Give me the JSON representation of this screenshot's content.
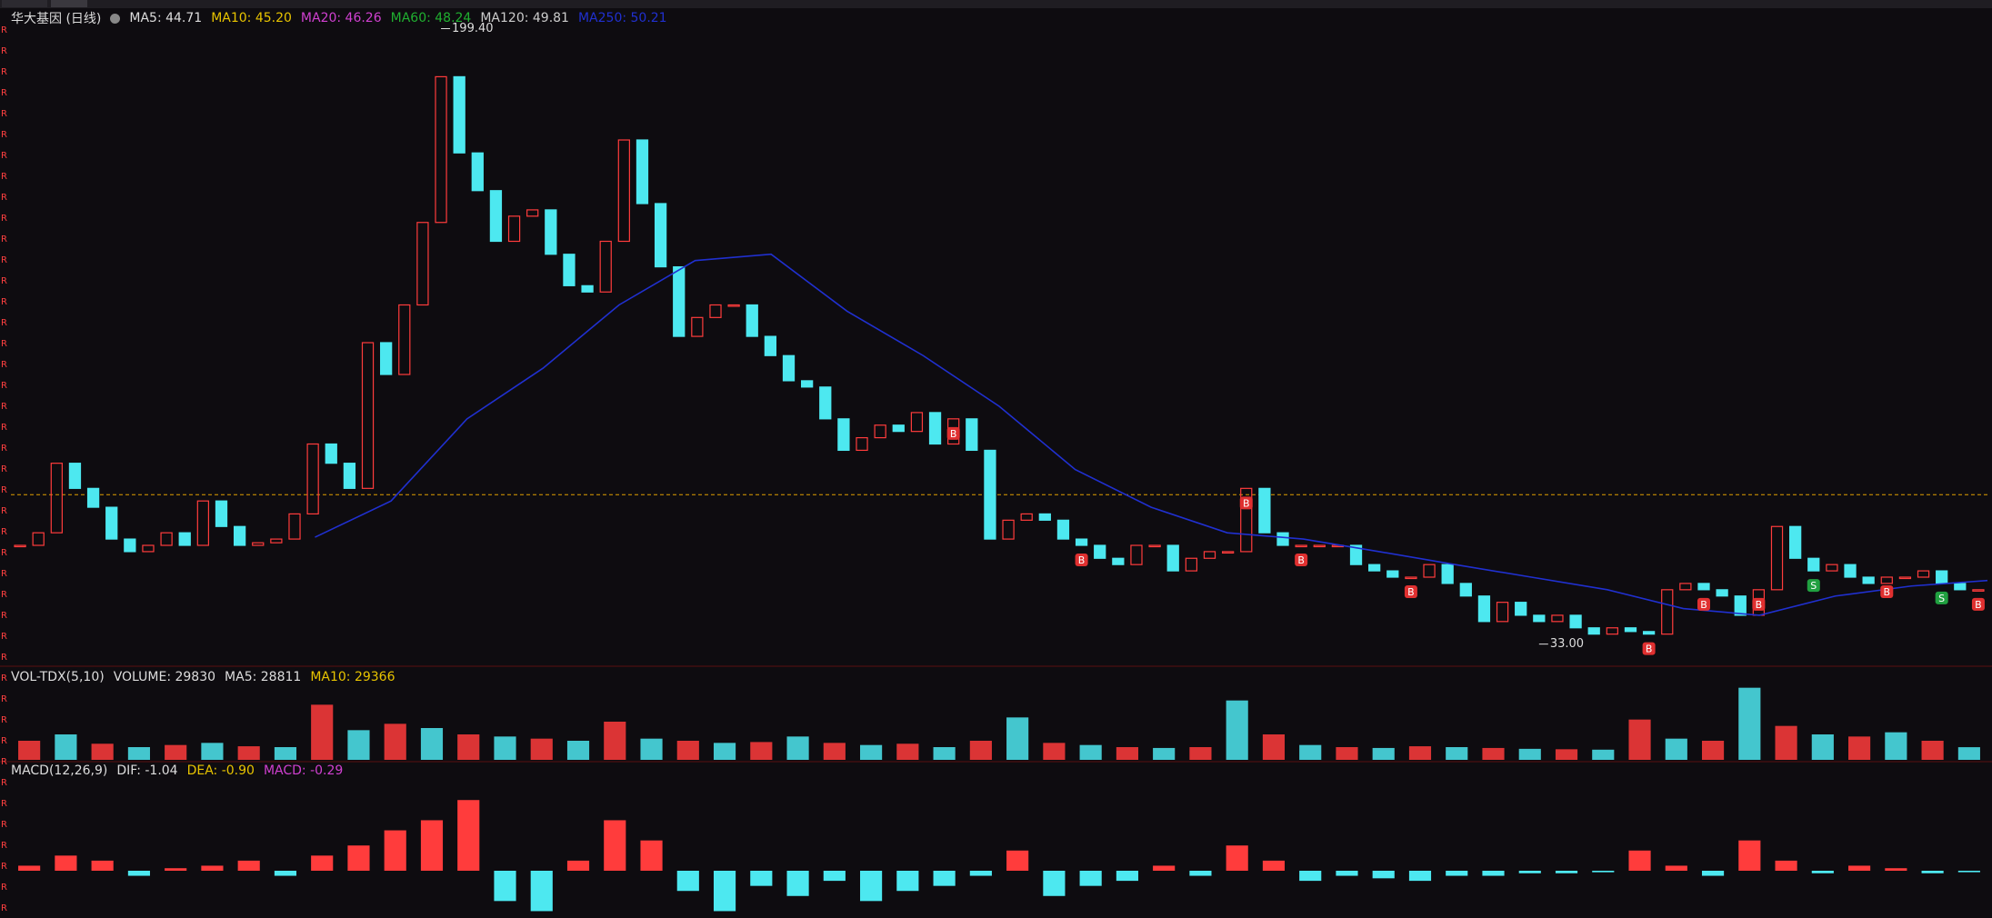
{
  "chart_data": [
    {
      "type": "candle",
      "title": "华大基因 (日线)",
      "legend": [
        {
          "text": "MA5: 44.71",
          "color": "#dddddd"
        },
        {
          "text": "MA10: 45.20",
          "color": "#e8c400"
        },
        {
          "text": "MA20: 46.26",
          "color": "#d040d0"
        },
        {
          "text": "MA60: 48.24",
          "color": "#20b030"
        },
        {
          "text": "MA120: 49.81",
          "color": "#cccccc"
        },
        {
          "text": "MA250: 50.21",
          "color": "#2030d0"
        }
      ],
      "values": [
        59.7,
        63.1,
        81.9,
        75.1,
        70.0,
        61.4,
        58.0,
        59.7,
        63.1,
        59.7,
        71.7,
        64.8,
        59.7,
        60.4,
        61.4,
        68.2,
        87.1,
        81.9,
        75.1,
        114.5,
        105.9,
        124.7,
        147.0,
        186.4,
        165.8,
        155.6,
        141.9,
        148.7,
        150.4,
        138.4,
        129.9,
        128.2,
        141.9,
        169.3,
        152.1,
        135.0,
        116.2,
        121.3,
        124.7,
        124.7,
        116.2,
        111.0,
        104.2,
        102.5,
        93.9,
        85.4,
        88.8,
        92.2,
        90.5,
        95.6,
        87.1,
        93.9,
        85.4,
        61.4,
        66.5,
        68.2,
        66.5,
        61.4,
        59.7,
        56.2,
        54.5,
        59.7,
        59.7,
        52.8,
        56.2,
        58.0,
        58.0,
        75.1,
        63.1,
        59.7,
        59.7,
        59.7,
        59.7,
        54.5,
        52.8,
        51.1,
        51.1,
        54.5,
        49.4,
        46.0,
        39.1,
        44.3,
        40.8,
        39.1,
        40.8,
        37.4,
        35.7,
        37.4,
        36.4,
        35.7,
        47.7,
        49.4,
        47.7,
        46.0,
        40.8,
        47.7,
        64.8,
        56.2,
        52.8,
        54.5,
        51.1,
        49.4,
        51.1,
        51.1,
        52.8,
        49.4,
        47.7,
        47.7
      ],
      "up_color": "#ff3c3c",
      "down_color": "#4de8f0",
      "ma250": {
        "color": "#2030d0",
        "values": [
          null,
          null,
          null,
          null,
          61.9,
          71.7,
          93.9,
          107.6,
          124.7,
          136.7,
          138.4,
          123.0,
          111.0,
          97.3,
          80.2,
          70.0,
          63.1,
          61.4,
          58.0,
          54.5,
          51.1,
          47.7,
          42.6,
          40.8,
          46.0,
          48.7,
          50.2
        ]
      },
      "hline": {
        "value": 73.4,
        "color": "#e0a000"
      },
      "high": {
        "value": 199.4,
        "label": "199.40",
        "index": 23
      },
      "low": {
        "value": 33,
        "label": "33.00",
        "index": 83
      },
      "signals": [
        {
          "label": "B",
          "index": 51
        },
        {
          "label": "B",
          "index": 58
        },
        {
          "label": "B",
          "index": 67
        },
        {
          "label": "B",
          "index": 70
        },
        {
          "label": "B",
          "index": 76
        },
        {
          "label": "B",
          "index": 89
        },
        {
          "label": "B",
          "index": 92
        },
        {
          "label": "B",
          "index": 95
        },
        {
          "label": "S",
          "index": 98
        },
        {
          "label": "B",
          "index": 102
        },
        {
          "label": "S",
          "index": 105
        },
        {
          "label": "B",
          "index": 107
        }
      ],
      "left_marker": "R",
      "ylim": [
        28,
        201
      ]
    },
    {
      "type": "volume",
      "legend": [
        {
          "text": "VOL-TDX(5,10)",
          "color": "#dddddd"
        },
        {
          "text": "VOLUME: 29830",
          "color": "#dddddd"
        },
        {
          "text": "MA5: 28811",
          "color": "#dddddd"
        },
        {
          "text": "MA10: 29366",
          "color": "#e8c400"
        }
      ],
      "values": [
        45000,
        60000,
        38000,
        30000,
        35000,
        40000,
        32000,
        30000,
        130000,
        70000,
        85000,
        75000,
        60000,
        55000,
        50000,
        45000,
        90000,
        50000,
        45000,
        40000,
        42000,
        55000,
        40000,
        35000,
        38000,
        30000,
        45000,
        100000,
        40000,
        35000,
        30000,
        28000,
        30000,
        140000,
        60000,
        35000,
        30000,
        28000,
        32000,
        30000,
        28000,
        26000,
        25000,
        24000,
        95000,
        50000,
        45000,
        170000,
        80000,
        60000,
        55000,
        65000,
        45000,
        29830
      ],
      "up_color": "#ff3c3c",
      "down_color": "#4de8f0",
      "ylim": [
        0,
        180000
      ]
    },
    {
      "type": "macd",
      "legend": [
        {
          "text": "MACD(12,26,9)",
          "color": "#dddddd"
        },
        {
          "text": "DIF: -1.04",
          "color": "#dddddd"
        },
        {
          "text": "DEA: -0.90",
          "color": "#e8c400"
        },
        {
          "text": "MACD: -0.29",
          "color": "#d040d0"
        }
      ],
      "values": [
        1,
        3,
        2,
        -1,
        0.5,
        1,
        2,
        -1,
        3,
        5,
        8,
        10,
        14,
        -6,
        -8,
        2,
        10,
        6,
        -4,
        -8,
        -3,
        -5,
        -2,
        -6,
        -4,
        -3,
        -1,
        4,
        -5,
        -3,
        -2,
        1,
        -1,
        5,
        2,
        -2,
        -1,
        -1.5,
        -2,
        -1,
        -1,
        -0.5,
        -0.5,
        -0.3,
        4,
        1,
        -1,
        6,
        2,
        -0.5,
        1,
        0.5,
        -0.5,
        -0.29
      ],
      "up_color": "#ff3c3c",
      "down_color": "#4de8f0",
      "ylim": [
        -9,
        18
      ]
    }
  ]
}
